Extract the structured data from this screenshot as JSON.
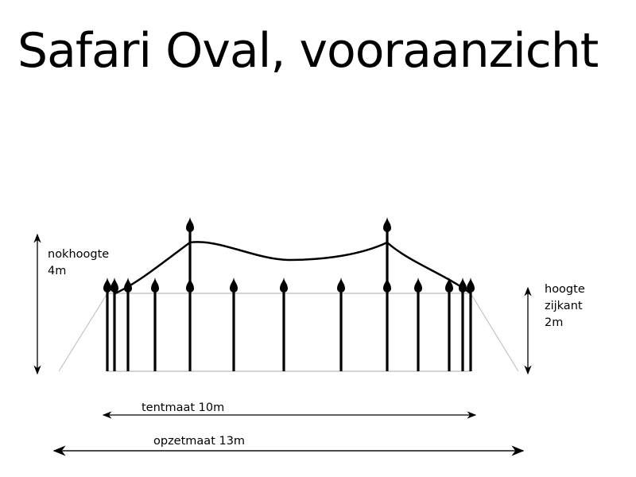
{
  "title": "Safari Oval, vooraanzicht",
  "labels": {
    "ridge_height": [
      "nokhoogte",
      "4m"
    ],
    "side_height": [
      "hoogte",
      "zijkant",
      "2m"
    ],
    "tent_size": "tentmaat 10m",
    "setup_size": "opzetmaat 13m"
  }
}
